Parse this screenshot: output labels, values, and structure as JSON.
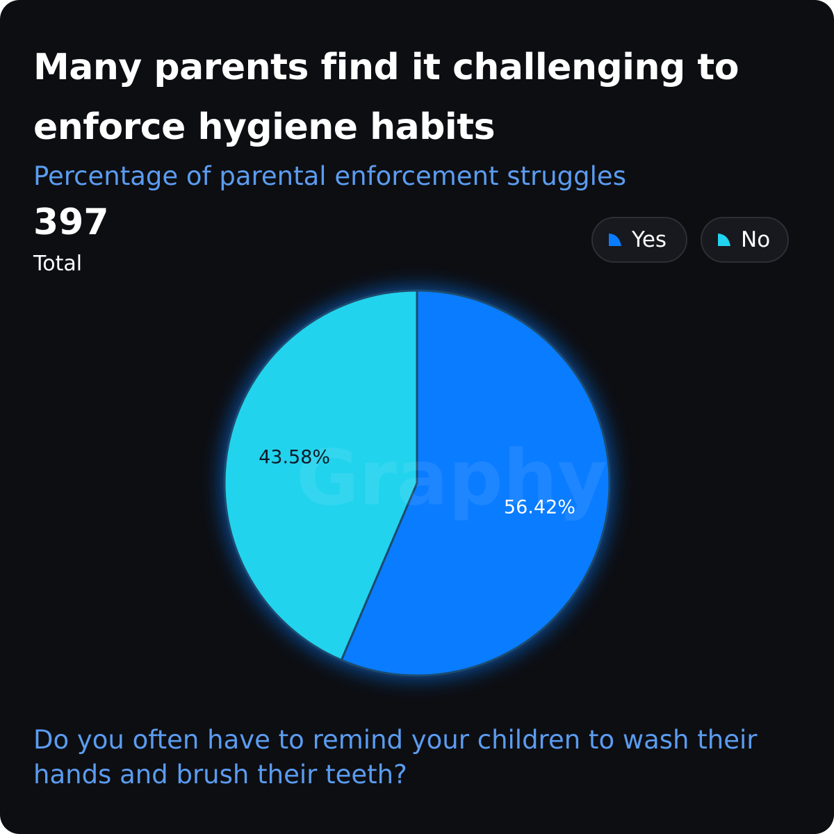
{
  "chart_data": {
    "type": "pie",
    "title": "Many parents find it challenging to enforce hygiene habits",
    "subtitle": "Percentage of parental enforcement struggles",
    "total": 397,
    "total_label": "Total",
    "categories": [
      "Yes",
      "No"
    ],
    "values": [
      56.42,
      43.58
    ],
    "value_labels": [
      "56.42%",
      "43.58%"
    ],
    "colors": [
      "#0a7cff",
      "#22d3ee"
    ],
    "label_colors": [
      "#ffffff",
      "#0d1a26"
    ],
    "legend": "top-right",
    "watermark": "Graphy",
    "footer": "Do you often have to remind your children to wash their hands and brush their teeth?"
  }
}
